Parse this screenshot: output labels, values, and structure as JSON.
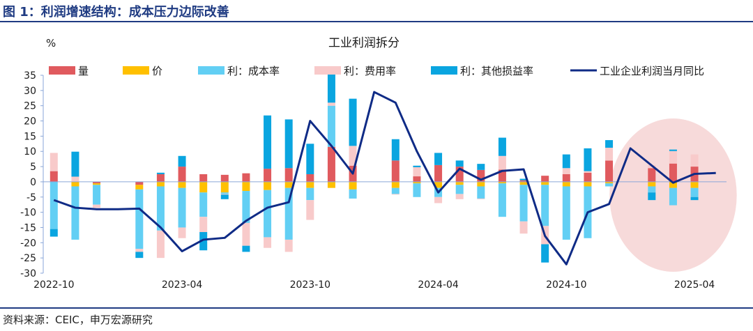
{
  "figure_title": "图 1：利润增速结构：成本压力边际改善",
  "source_note": "资料来源：CEIC，申万宏源研究",
  "colors": {
    "header": "#1f3b82",
    "quantity": "#e05a5e",
    "price": "#ffc000",
    "cost_rate": "#62cff4",
    "expense_rate": "#f8caca",
    "other_rate": "#0aa5e0",
    "yoy_line": "#0f2b86",
    "highlight": "#f6d4d4",
    "axis": "#8aa6d8"
  },
  "chart_data": {
    "type": "bar",
    "stacked": true,
    "title": "工业利润拆分",
    "ylabel": "%",
    "ylim": [
      -30,
      35
    ],
    "yticks": [
      35,
      30,
      25,
      20,
      15,
      10,
      5,
      0,
      -5,
      -10,
      -15,
      -20,
      -25,
      -30
    ],
    "grid": false,
    "legend_position": "top",
    "x_tick_labels": [
      "2022-10",
      "2023-04",
      "2023-10",
      "2024-04",
      "2024-10",
      "2025-04"
    ],
    "x_tick_index": [
      0,
      6,
      12,
      18,
      24,
      30
    ],
    "x": [
      "2022-10",
      "2022-11",
      "2022-12",
      "2023-01",
      "2023-02",
      "2023-03",
      "2023-04",
      "2023-05",
      "2023-06",
      "2023-07",
      "2023-08",
      "2023-09",
      "2023-10",
      "2023-11",
      "2023-12",
      "2024-01",
      "2024-02",
      "2024-03",
      "2024-04",
      "2024-05",
      "2024-06",
      "2024-07",
      "2024-08",
      "2024-09",
      "2024-10",
      "2024-11",
      "2024-12",
      "2025-01",
      "2025-02",
      "2025-03",
      "2025-04",
      "2025-05"
    ],
    "series": [
      {
        "name": "量",
        "key": "quantity",
        "kind": "bar",
        "values": [
          3.5,
          0,
          -0.5,
          null,
          -1,
          2.5,
          5,
          2.5,
          2.3,
          2.8,
          4.3,
          4.5,
          2.5,
          11.5,
          5.3,
          null,
          7,
          1.8,
          5.5,
          5,
          3.9,
          4,
          0.5,
          2,
          2.5,
          3,
          7,
          null,
          4.5,
          6,
          5,
          null
        ]
      },
      {
        "name": "价",
        "key": "price",
        "kind": "bar",
        "values": [
          0,
          -1.5,
          -0.5,
          null,
          -1.5,
          -1.5,
          -2,
          -3.5,
          -3.5,
          -3,
          -2.7,
          -2,
          -2,
          -2,
          -2.5,
          null,
          -2,
          -0.5,
          -2,
          -1,
          -1.5,
          -0.5,
          -1,
          -1,
          -1.5,
          -1.5,
          -0.5,
          null,
          -1.5,
          -2,
          -2,
          null
        ]
      },
      {
        "name": "利：成本率",
        "key": "cost_rate",
        "kind": "bar",
        "values": [
          -15.5,
          -17.5,
          -6.5,
          null,
          -19.5,
          -14.5,
          -13,
          -8,
          -0.5,
          -10.5,
          -15.5,
          -17,
          -4,
          13.5,
          -3,
          null,
          -2,
          -4.5,
          -3,
          -3,
          -4,
          -11,
          -12,
          -13.5,
          -17.5,
          -17,
          -1,
          null,
          -2,
          -5.7,
          -3,
          null
        ]
      },
      {
        "name": "利：费用率",
        "key": "expense_rate",
        "kind": "bar",
        "values": [
          6,
          1.7,
          -1,
          null,
          -1,
          -9,
          -3.5,
          -5,
          -0.2,
          -7.5,
          -3.5,
          -4,
          -6.5,
          1,
          6.5,
          null,
          -0.2,
          3,
          -2,
          -1.7,
          -0.2,
          4.5,
          -4,
          -6,
          2,
          0.5,
          4.2,
          null,
          1,
          4.1,
          4,
          null
        ]
      },
      {
        "name": "利：其他损益率",
        "key": "other_rate",
        "kind": "bar",
        "values": [
          -2.5,
          8.2,
          0,
          null,
          -2,
          0.5,
          3.5,
          -6,
          -1.5,
          -2,
          17.5,
          16,
          10,
          10,
          15.5,
          null,
          7,
          0.5,
          4,
          2,
          2,
          6,
          0.5,
          -6,
          4.5,
          7.5,
          2.5,
          null,
          -2.5,
          0.5,
          -1,
          null
        ]
      },
      {
        "name": "工业企业利润当月同比",
        "key": "yoy",
        "kind": "line",
        "values": [
          -6,
          -8.5,
          -9,
          -9,
          -8.8,
          -15,
          -22.8,
          -19,
          -18.4,
          -12.8,
          -8.5,
          -6.7,
          20,
          11.8,
          2.7,
          29.5,
          26,
          10,
          -3.5,
          4.3,
          0.7,
          3.6,
          4.1,
          -17.8,
          -27.1,
          -10,
          -7.3,
          11,
          null,
          -0.3,
          2.6,
          2.9
        ]
      }
    ],
    "highlight": {
      "shape": "ellipse",
      "x_range": [
        "2025-01",
        "2025-05"
      ]
    }
  }
}
